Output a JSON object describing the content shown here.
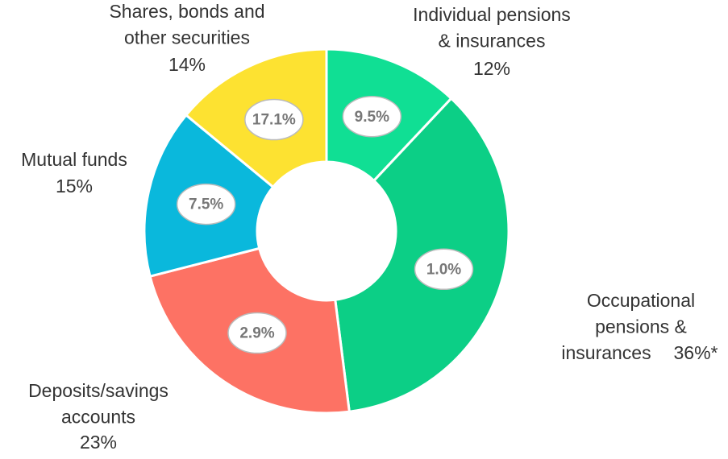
{
  "chart_data": {
    "type": "donut",
    "categories": [
      "Individual pensions\n& insurances",
      "Occupational\npensions &\ninsurances",
      "Deposits/savings\naccounts",
      "Mutual funds",
      "Shares, bonds and\nother securities"
    ],
    "values": [
      12,
      36,
      23,
      15,
      14
    ],
    "value_labels": [
      "12%",
      "36%*",
      "23%",
      "15%",
      "14%"
    ],
    "colors": [
      "#10df94",
      "#0ccf86",
      "#fd7264",
      "#0ab8dc",
      "#fde231"
    ],
    "inner": {
      "values": [
        9.5,
        1.0,
        2.9,
        7.5,
        17.1
      ],
      "value_labels": [
        "9.5%",
        "1.0%",
        "2.9%",
        "7.5%",
        "17.1%"
      ]
    }
  }
}
